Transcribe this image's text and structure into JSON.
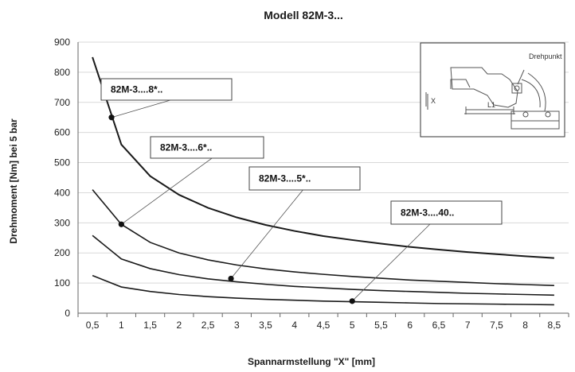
{
  "chart_data": {
    "type": "line",
    "title": "Modell 82M-3...",
    "xlabel": "Spannarmstellung \"X\" [mm]",
    "ylabel": "Drehmoment [Nm]  bei 5 bar",
    "ylim": [
      0,
      900
    ],
    "yticks": [
      "0",
      "100",
      "200",
      "300",
      "400",
      "500",
      "600",
      "700",
      "800",
      "900"
    ],
    "categories": [
      "0,5",
      "1",
      "1,5",
      "2",
      "2,5",
      "3",
      "3,5",
      "4",
      "4,5",
      "5",
      "5,5",
      "6",
      "6,5",
      "7",
      "7,5",
      "8",
      "8,5"
    ],
    "grid": true,
    "series": [
      {
        "name": "82M-3....8*..",
        "x": [
          0.5,
          1,
          1.5,
          2,
          2.5,
          3,
          3.5,
          4,
          4.5,
          5,
          5.5,
          6,
          6.5,
          7,
          7.5,
          8,
          8.5
        ],
        "values": [
          850,
          560,
          455,
          393,
          350,
          318,
          293,
          273,
          256,
          243,
          231,
          220,
          211,
          203,
          196,
          189,
          183
        ]
      },
      {
        "name": "82M-3....6*..",
        "x": [
          0.5,
          1,
          1.5,
          2,
          2.5,
          3,
          3.5,
          4,
          4.5,
          5,
          5.5,
          6,
          6.5,
          7,
          7.5,
          8,
          8.5
        ],
        "values": [
          410,
          295,
          235,
          200,
          177,
          160,
          147,
          137,
          129,
          122,
          116,
          110,
          106,
          102,
          98,
          95,
          92
        ]
      },
      {
        "name": "82M-3....5*..",
        "x": [
          0.5,
          1,
          1.5,
          2,
          2.5,
          3,
          3.5,
          4,
          4.5,
          5,
          5.5,
          6,
          6.5,
          7,
          7.5,
          8,
          8.5
        ],
        "values": [
          258,
          180,
          148,
          128,
          114,
          104,
          96,
          89,
          84,
          79,
          75,
          72,
          69,
          66,
          64,
          62,
          60
        ]
      },
      {
        "name": "82M-3....40..",
        "x": [
          0.5,
          1,
          1.5,
          2,
          2.5,
          3,
          3.5,
          4,
          4.5,
          5,
          5.5,
          6,
          6.5,
          7,
          7.5,
          8,
          8.5
        ],
        "values": [
          125,
          87,
          72,
          62,
          55,
          50,
          46,
          43,
          40,
          38,
          36,
          34,
          32,
          31,
          30,
          29,
          28
        ]
      }
    ],
    "callouts": [
      {
        "label": "82M-3....8*..",
        "series": 0,
        "point_x": 0.83,
        "point_y": 650
      },
      {
        "label": "82M-3....6*..",
        "series": 1,
        "point_x": 1.0,
        "point_y": 295
      },
      {
        "label": "82M-3....5*..",
        "series": 2,
        "point_x": 2.9,
        "point_y": 115
      },
      {
        "label": "82M-3....40..",
        "series": 3,
        "point_x": 5.0,
        "point_y": 40
      }
    ],
    "inset": {
      "label_pivot": "Drehpunkt",
      "label_x": "X",
      "label_l1": "L1"
    },
    "line_color": "#1a1a1a",
    "grid_color": "#d9d9d9"
  }
}
